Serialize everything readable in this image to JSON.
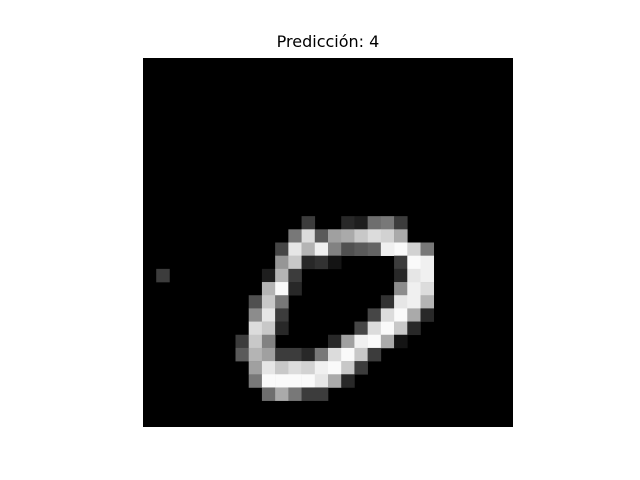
{
  "chart_data": {
    "type": "heatmap",
    "title": "Predicción: 4",
    "colormap": "gray",
    "vmin": 0,
    "vmax": 255,
    "rows": 28,
    "cols": 28,
    "axis_visible": false,
    "pixels": [
      [
        0,
        0,
        0,
        0,
        0,
        0,
        0,
        0,
        0,
        0,
        0,
        0,
        0,
        0,
        0,
        0,
        0,
        0,
        0,
        0,
        0,
        0,
        0,
        0,
        0,
        0,
        0,
        0
      ],
      [
        0,
        0,
        0,
        0,
        0,
        0,
        0,
        0,
        0,
        0,
        0,
        0,
        0,
        0,
        0,
        0,
        0,
        0,
        0,
        0,
        0,
        0,
        0,
        0,
        0,
        0,
        0,
        0
      ],
      [
        0,
        0,
        0,
        0,
        0,
        0,
        0,
        0,
        0,
        0,
        0,
        0,
        0,
        0,
        0,
        0,
        0,
        0,
        0,
        0,
        0,
        0,
        0,
        0,
        0,
        0,
        0,
        0
      ],
      [
        0,
        0,
        0,
        0,
        0,
        0,
        0,
        0,
        0,
        0,
        0,
        0,
        0,
        0,
        0,
        0,
        0,
        0,
        0,
        0,
        0,
        0,
        0,
        0,
        0,
        0,
        0,
        0
      ],
      [
        0,
        0,
        0,
        0,
        0,
        0,
        0,
        0,
        0,
        0,
        0,
        0,
        0,
        0,
        0,
        0,
        0,
        0,
        0,
        0,
        0,
        0,
        0,
        0,
        0,
        0,
        0,
        0
      ],
      [
        0,
        0,
        0,
        0,
        0,
        0,
        0,
        0,
        0,
        0,
        0,
        0,
        0,
        0,
        0,
        0,
        0,
        0,
        0,
        0,
        0,
        0,
        0,
        0,
        0,
        0,
        0,
        0
      ],
      [
        0,
        0,
        0,
        0,
        0,
        0,
        0,
        0,
        0,
        0,
        0,
        0,
        0,
        0,
        0,
        0,
        0,
        0,
        0,
        0,
        0,
        0,
        0,
        0,
        0,
        0,
        0,
        0
      ],
      [
        0,
        0,
        0,
        0,
        0,
        0,
        0,
        0,
        0,
        0,
        0,
        0,
        0,
        0,
        0,
        0,
        0,
        0,
        0,
        0,
        0,
        0,
        0,
        0,
        0,
        0,
        0,
        0
      ],
      [
        0,
        0,
        0,
        0,
        0,
        0,
        0,
        0,
        0,
        0,
        0,
        0,
        0,
        0,
        0,
        0,
        0,
        0,
        0,
        0,
        0,
        0,
        0,
        0,
        0,
        0,
        0,
        0
      ],
      [
        0,
        0,
        0,
        0,
        0,
        0,
        0,
        0,
        0,
        0,
        0,
        0,
        0,
        0,
        0,
        0,
        0,
        0,
        0,
        0,
        0,
        0,
        0,
        0,
        0,
        0,
        0,
        0
      ],
      [
        0,
        0,
        0,
        0,
        0,
        0,
        0,
        0,
        0,
        0,
        0,
        0,
        0,
        0,
        0,
        0,
        0,
        0,
        0,
        0,
        0,
        0,
        0,
        0,
        0,
        0,
        0,
        0
      ],
      [
        0,
        0,
        0,
        0,
        0,
        0,
        0,
        0,
        0,
        0,
        0,
        0,
        0,
        0,
        0,
        0,
        0,
        0,
        0,
        0,
        0,
        0,
        0,
        0,
        0,
        0,
        0,
        0
      ],
      [
        0,
        0,
        0,
        0,
        0,
        0,
        0,
        0,
        0,
        0,
        0,
        0,
        60,
        0,
        0,
        40,
        30,
        110,
        120,
        60,
        0,
        0,
        0,
        0,
        0,
        0,
        0,
        0
      ],
      [
        0,
        0,
        0,
        0,
        0,
        0,
        0,
        0,
        0,
        0,
        0,
        120,
        220,
        90,
        160,
        170,
        200,
        220,
        210,
        170,
        0,
        0,
        0,
        0,
        0,
        0,
        0,
        0
      ],
      [
        0,
        0,
        0,
        0,
        0,
        0,
        0,
        0,
        0,
        0,
        70,
        230,
        180,
        240,
        130,
        80,
        90,
        100,
        240,
        250,
        210,
        120,
        0,
        0,
        0,
        0,
        0,
        0
      ],
      [
        0,
        0,
        0,
        0,
        0,
        0,
        0,
        0,
        0,
        0,
        150,
        200,
        40,
        50,
        20,
        0,
        0,
        0,
        0,
        60,
        250,
        240,
        0,
        0,
        0,
        0,
        0,
        0
      ],
      [
        0,
        60,
        0,
        0,
        0,
        0,
        0,
        0,
        0,
        30,
        180,
        60,
        0,
        0,
        0,
        0,
        0,
        0,
        0,
        40,
        230,
        240,
        0,
        0,
        0,
        0,
        0,
        0
      ],
      [
        0,
        0,
        0,
        0,
        0,
        0,
        0,
        0,
        0,
        180,
        250,
        40,
        0,
        0,
        0,
        0,
        0,
        0,
        0,
        140,
        240,
        220,
        0,
        0,
        0,
        0,
        0,
        0
      ],
      [
        0,
        0,
        0,
        0,
        0,
        0,
        0,
        0,
        80,
        200,
        120,
        0,
        0,
        0,
        0,
        0,
        0,
        0,
        50,
        230,
        240,
        180,
        0,
        0,
        0,
        0,
        0,
        0
      ],
      [
        0,
        0,
        0,
        0,
        0,
        0,
        0,
        0,
        140,
        230,
        60,
        0,
        0,
        0,
        0,
        0,
        0,
        70,
        220,
        250,
        170,
        40,
        0,
        0,
        0,
        0,
        0,
        0
      ],
      [
        0,
        0,
        0,
        0,
        0,
        0,
        0,
        0,
        220,
        200,
        40,
        0,
        0,
        0,
        0,
        0,
        70,
        220,
        250,
        200,
        40,
        0,
        0,
        0,
        0,
        0,
        0,
        0
      ],
      [
        0,
        0,
        0,
        0,
        0,
        0,
        0,
        60,
        200,
        130,
        0,
        0,
        0,
        0,
        40,
        160,
        240,
        250,
        170,
        20,
        0,
        0,
        0,
        0,
        0,
        0,
        0,
        0
      ],
      [
        0,
        0,
        0,
        0,
        0,
        0,
        0,
        90,
        180,
        160,
        60,
        60,
        40,
        120,
        220,
        250,
        200,
        60,
        0,
        0,
        0,
        0,
        0,
        0,
        0,
        0,
        0,
        0
      ],
      [
        0,
        0,
        0,
        0,
        0,
        0,
        0,
        0,
        160,
        230,
        200,
        220,
        210,
        240,
        250,
        200,
        60,
        0,
        0,
        0,
        0,
        0,
        0,
        0,
        0,
        0,
        0,
        0
      ],
      [
        0,
        0,
        0,
        0,
        0,
        0,
        0,
        0,
        120,
        250,
        250,
        250,
        250,
        230,
        170,
        40,
        0,
        0,
        0,
        0,
        0,
        0,
        0,
        0,
        0,
        0,
        0,
        0
      ],
      [
        0,
        0,
        0,
        0,
        0,
        0,
        0,
        0,
        0,
        110,
        170,
        120,
        60,
        60,
        0,
        0,
        0,
        0,
        0,
        0,
        0,
        0,
        0,
        0,
        0,
        0,
        0,
        0
      ],
      [
        0,
        0,
        0,
        0,
        0,
        0,
        0,
        0,
        0,
        0,
        0,
        0,
        0,
        0,
        0,
        0,
        0,
        0,
        0,
        0,
        0,
        0,
        0,
        0,
        0,
        0,
        0,
        0
      ],
      [
        0,
        0,
        0,
        0,
        0,
        0,
        0,
        0,
        0,
        0,
        0,
        0,
        0,
        0,
        0,
        0,
        0,
        0,
        0,
        0,
        0,
        0,
        0,
        0,
        0,
        0,
        0,
        0
      ]
    ]
  }
}
